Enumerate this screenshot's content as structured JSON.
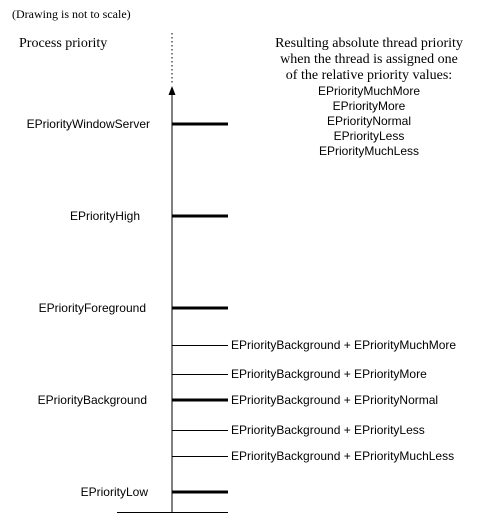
{
  "diagram": {
    "note": "(Drawing is not to scale)",
    "axis_title": "Process priority",
    "legend": {
      "heading_lines": [
        "Resulting absolute thread priority",
        "when the thread is assigned one",
        "of the relative priority values:"
      ],
      "values": [
        "EPriorityMuchMore",
        "EPriorityMore",
        "EPriorityNormal",
        "EPriorityLess",
        "EPriorityMuchLess"
      ]
    },
    "process_levels": [
      "EPriorityWindowServer",
      "EPriorityHigh",
      "EPriorityForeground",
      "EPriorityBackground",
      "EPriorityLow"
    ],
    "background_thread_levels": [
      "EPriorityBackground + EPriorityMuchMore",
      "EPriorityBackground + EPriorityMore",
      "EPriorityBackground + EPriorityNormal",
      "EPriorityBackground + EPriorityLess",
      "EPriorityBackground + EPriorityMuchLess"
    ],
    "colors": {
      "background": "#ffffff",
      "ink": "#000000"
    }
  }
}
